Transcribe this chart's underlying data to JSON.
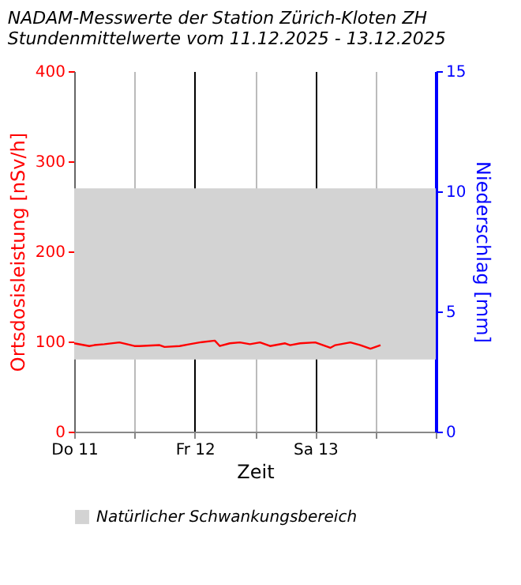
{
  "chart_data": {
    "type": "line",
    "title": "NADAM-Messwerte der Station Zürich-Kloten ZH",
    "subtitle": "Stundenmittelwerte vom 11.12.2025 - 13.12.2025",
    "xlabel": "Zeit",
    "ylabel": "Ortsdosisleistung [nSv/h]",
    "y2label": "Niederschlag [mm]",
    "x": [
      "2025-12-11T00:00",
      "2025-12-11T03:00",
      "2025-12-11T04:00",
      "2025-12-11T06:00",
      "2025-12-11T09:00",
      "2025-12-11T12:00",
      "2025-12-11T13:00",
      "2025-12-11T17:00",
      "2025-12-11T18:00",
      "2025-12-11T21:00",
      "2025-12-11T23:00",
      "2025-12-12T01:00",
      "2025-12-12T04:00",
      "2025-12-12T05:00",
      "2025-12-12T07:00",
      "2025-12-12T09:00",
      "2025-12-12T11:00",
      "2025-12-12T13:00",
      "2025-12-12T15:00",
      "2025-12-12T18:00",
      "2025-12-12T19:00",
      "2025-12-12T21:00",
      "2025-12-13T00:00",
      "2025-12-13T03:00",
      "2025-12-13T04:00",
      "2025-12-13T07:00",
      "2025-12-13T09:00",
      "2025-12-13T11:00",
      "2025-12-13T13:00"
    ],
    "series": [
      {
        "color": "#ff0000",
        "values": [
          98,
          95,
          96,
          97,
          99,
          95,
          95,
          96,
          94,
          95,
          97,
          99,
          101,
          95,
          98,
          99,
          97,
          99,
          95,
          98,
          96,
          98,
          99,
          93,
          96,
          99,
          96,
          92,
          96
        ]
      }
    ],
    "xlim": [
      "2025-12-11T00:00",
      "2025-12-14T00:00"
    ],
    "xticks": [
      {
        "value": "2025-12-11T00:00",
        "label": "Do 11"
      },
      {
        "value": "2025-12-11T12:00",
        "label": null
      },
      {
        "value": "2025-12-12T00:00",
        "label": "Fr 12"
      },
      {
        "value": "2025-12-12T12:00",
        "label": null
      },
      {
        "value": "2025-12-13T00:00",
        "label": "Sa 13"
      },
      {
        "value": "2025-12-13T12:00",
        "label": null
      },
      {
        "value": "2025-12-14T00:00",
        "label": null
      }
    ],
    "ylim": [
      0,
      400
    ],
    "yticks": [
      0,
      100,
      200,
      300,
      400
    ],
    "y2lim": [
      0,
      15
    ],
    "y2ticks": [
      0,
      5,
      10,
      15
    ],
    "bands": [
      {
        "axis": "y",
        "from": 80,
        "to": 270,
        "label": "Natürlicher Schwankungsbereich",
        "color": "#d3d3d3"
      }
    ],
    "grid": "x",
    "legend": "bottom"
  }
}
